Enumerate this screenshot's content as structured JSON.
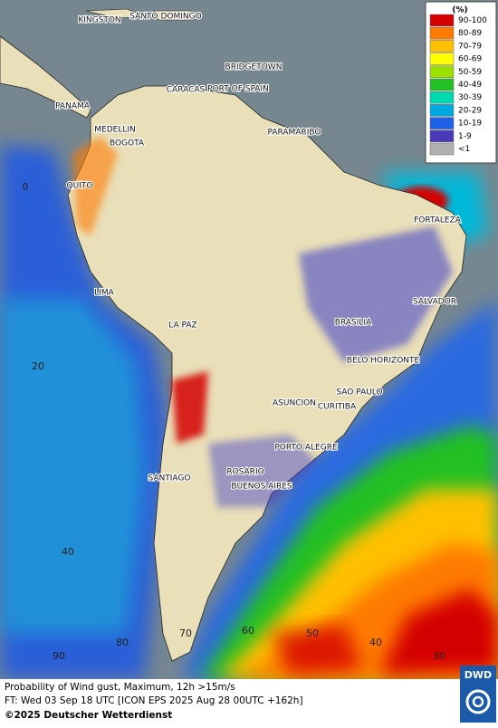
{
  "legend": {
    "title": "(%)",
    "items": [
      {
        "label": "90-100",
        "color": "#d40000"
      },
      {
        "label": "80-89",
        "color": "#ff7a00"
      },
      {
        "label": "70-79",
        "color": "#ffc000"
      },
      {
        "label": "60-69",
        "color": "#ffff00"
      },
      {
        "label": "50-59",
        "color": "#9be000"
      },
      {
        "label": "40-49",
        "color": "#22c022"
      },
      {
        "label": "30-39",
        "color": "#00d8b0"
      },
      {
        "label": "20-29",
        "color": "#00a8e0"
      },
      {
        "label": "10-19",
        "color": "#2060e8"
      },
      {
        "label": "1-9",
        "color": "#4b3ab8"
      },
      {
        "label": "<1",
        "color": "#b0b0b0"
      }
    ]
  },
  "map": {
    "cities": [
      "KINGSTON",
      "SANTO DOMINGO",
      "BRIDGETOWN",
      "CARACAS",
      "PORT OF SPAIN",
      "PANAMA",
      "PARAMARIBO",
      "MEDELLIN",
      "BOGOTA",
      "QUITO",
      "FORTALEZA",
      "LIMA",
      "SALVADOR",
      "BRASILIA",
      "LA PAZ",
      "BELO HORIZONTE",
      "SAO PAULO",
      "ASUNCION",
      "CURITIBA",
      "PORTO ALEGRE",
      "ROSARIO",
      "SANTIAGO",
      "BUENOS AIRES"
    ],
    "grid_labels": [
      "0",
      "20",
      "40",
      "60",
      "50",
      "40",
      "30",
      "70",
      "80",
      "90"
    ]
  },
  "footer": {
    "lines": [
      "Probability of Wind gust, Maximum, 12h >15m/s",
      "FT: Wed 03 Sep 18 UTC [ICON EPS 2025 Aug 28 00UTC +162h]",
      "©2025 Deutscher Wetterdienst"
    ],
    "logo": "DWD"
  }
}
